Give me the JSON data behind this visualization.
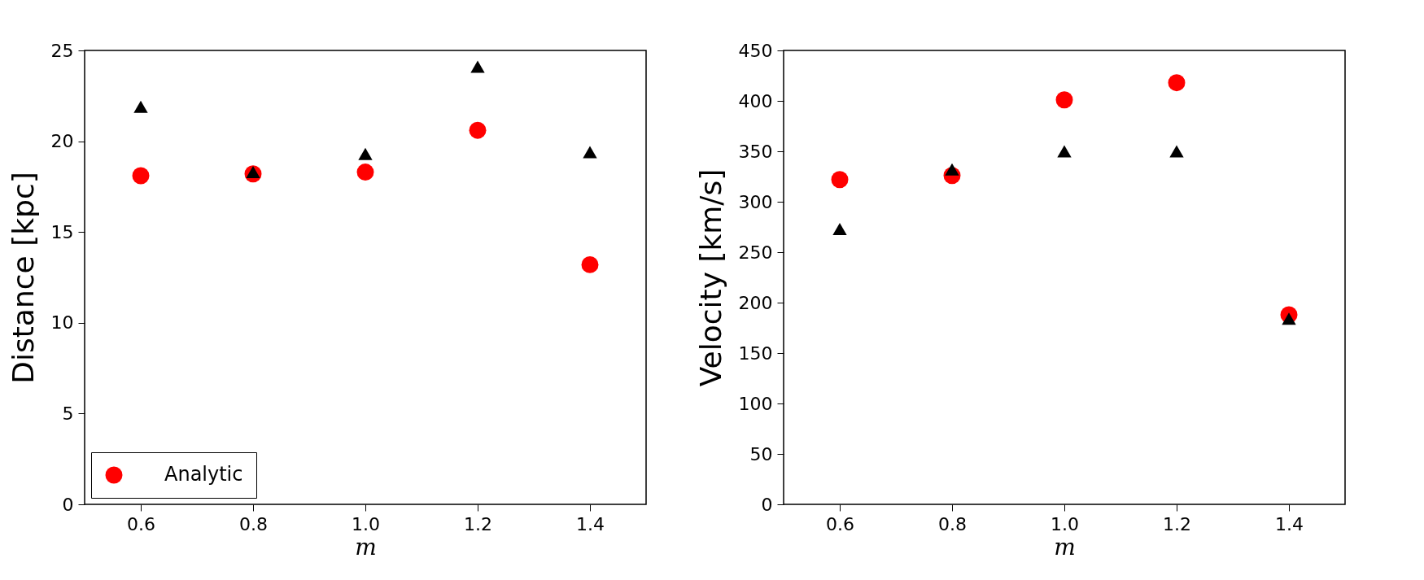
{
  "chart_data": [
    {
      "type": "scatter",
      "xlabel": "m",
      "ylabel": "Distance [kpc]",
      "x": [
        0.6,
        0.8,
        1.0,
        1.2,
        1.4
      ],
      "xlim": [
        0.5,
        1.5
      ],
      "xticks": [
        0.6,
        0.8,
        {
          "value": 1.0,
          "label": "1.0"
        },
        1.2,
        1.4
      ],
      "ylim": [
        0,
        25
      ],
      "yticks": [
        0,
        5,
        10,
        15,
        20,
        25
      ],
      "grid": false,
      "legend": "bottom left",
      "series": [
        {
          "name": "Analytic",
          "color": "#ff0000",
          "marker": "circle",
          "values": [
            18.1,
            18.2,
            18.3,
            20.6,
            13.2
          ]
        },
        {
          "color": "#000000",
          "marker": "triangle",
          "values": [
            21.9,
            18.3,
            19.3,
            24.1,
            19.4
          ]
        }
      ]
    },
    {
      "type": "scatter",
      "xlabel": "m",
      "ylabel": "Velocity [km/s]",
      "x": [
        0.6,
        0.8,
        1.0,
        1.2,
        1.4
      ],
      "xlim": [
        0.5,
        1.5
      ],
      "xticks": [
        0.6,
        0.8,
        {
          "value": 1.0,
          "label": "1.0"
        },
        1.2,
        1.4
      ],
      "ylim": [
        0,
        450
      ],
      "yticks": [
        0,
        50,
        100,
        150,
        200,
        250,
        300,
        350,
        400,
        450
      ],
      "grid": false,
      "series": [
        {
          "name": "Analytic",
          "color": "#ff0000",
          "marker": "circle",
          "values": [
            322,
            326,
            401,
            418,
            188
          ]
        },
        {
          "color": "#000000",
          "marker": "triangle",
          "values": [
            273,
            332,
            350,
            350,
            184
          ]
        }
      ]
    }
  ]
}
